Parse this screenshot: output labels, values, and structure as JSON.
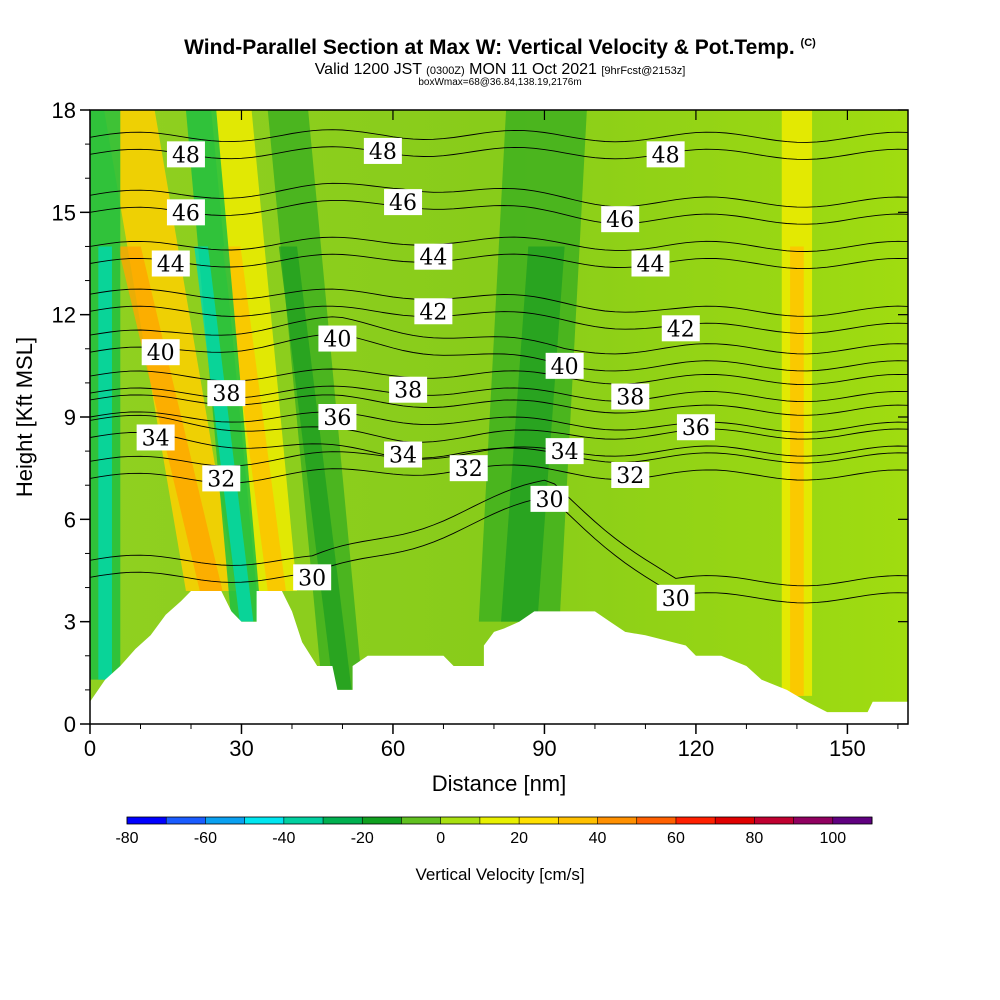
{
  "header": {
    "title": "Wind-Parallel Section at Max W: Vertical Velocity & Pot.Temp.",
    "copyright": "(C)",
    "valid_prefix": "Valid 1200 JST",
    "valid_utc": "(0300Z)",
    "valid_date": "MON 11 Oct 2021",
    "forecast": "[9hrFcst@2153z]",
    "box_info": "boxWmax=68@36.84,138.19,2176m"
  },
  "chart_data": {
    "type": "heatmap",
    "xlabel": "Distance [nm]",
    "ylabel": "Height [Kft MSL]",
    "xlim": [
      0,
      162
    ],
    "ylim": [
      0,
      18
    ],
    "x_ticks": [
      0,
      30,
      60,
      90,
      120,
      150
    ],
    "y_ticks": [
      0,
      3,
      6,
      9,
      12,
      15,
      18
    ],
    "terrain_kft": [
      [
        0,
        0.65
      ],
      [
        3,
        1.3
      ],
      [
        6,
        1.7
      ],
      [
        9,
        2.2
      ],
      [
        12,
        2.6
      ],
      [
        15,
        3.2
      ],
      [
        18,
        3.6
      ],
      [
        20,
        3.9
      ],
      [
        26,
        3.9
      ],
      [
        28,
        3.3
      ],
      [
        30,
        3.0
      ],
      [
        33,
        3.0
      ],
      [
        33,
        3.9
      ],
      [
        38,
        3.9
      ],
      [
        40,
        3.3
      ],
      [
        42,
        2.4
      ],
      [
        45,
        1.7
      ],
      [
        48,
        1.7
      ],
      [
        49,
        1.0
      ],
      [
        52,
        1.0
      ],
      [
        52,
        1.7
      ],
      [
        55,
        2.0
      ],
      [
        70,
        2.0
      ],
      [
        72,
        1.7
      ],
      [
        78,
        1.7
      ],
      [
        78,
        2.3
      ],
      [
        80,
        2.7
      ],
      [
        82,
        2.8
      ],
      [
        85,
        3.0
      ],
      [
        88,
        3.3
      ],
      [
        100,
        3.3
      ],
      [
        103,
        3.0
      ],
      [
        106,
        2.7
      ],
      [
        110,
        2.6
      ],
      [
        118,
        2.3
      ],
      [
        120,
        2.0
      ],
      [
        125,
        2.0
      ],
      [
        130,
        1.7
      ],
      [
        133,
        1.3
      ],
      [
        138,
        1.0
      ],
      [
        142,
        0.65
      ],
      [
        146,
        0.35
      ],
      [
        154,
        0.35
      ],
      [
        155,
        0.65
      ],
      [
        162,
        0.65
      ]
    ],
    "theta_contour_labels": [
      {
        "value": "48",
        "x": 19,
        "y": 16.7
      },
      {
        "value": "48",
        "x": 58,
        "y": 16.8
      },
      {
        "value": "48",
        "x": 114,
        "y": 16.7
      },
      {
        "value": "46",
        "x": 19,
        "y": 15.0
      },
      {
        "value": "46",
        "x": 62,
        "y": 15.3
      },
      {
        "value": "46",
        "x": 105,
        "y": 14.8
      },
      {
        "value": "44",
        "x": 16,
        "y": 13.5
      },
      {
        "value": "44",
        "x": 68,
        "y": 13.7
      },
      {
        "value": "44",
        "x": 111,
        "y": 13.5
      },
      {
        "value": "42",
        "x": 68,
        "y": 12.1
      },
      {
        "value": "42",
        "x": 117,
        "y": 11.6
      },
      {
        "value": "40",
        "x": 14,
        "y": 10.9
      },
      {
        "value": "40",
        "x": 49,
        "y": 11.3
      },
      {
        "value": "40",
        "x": 94,
        "y": 10.5
      },
      {
        "value": "38",
        "x": 27,
        "y": 9.7
      },
      {
        "value": "38",
        "x": 63,
        "y": 9.8
      },
      {
        "value": "38",
        "x": 107,
        "y": 9.6
      },
      {
        "value": "36",
        "x": 49,
        "y": 9.0
      },
      {
        "value": "36",
        "x": 120,
        "y": 8.7
      },
      {
        "value": "34",
        "x": 13,
        "y": 8.4
      },
      {
        "value": "34",
        "x": 62,
        "y": 7.9
      },
      {
        "value": "34",
        "x": 94,
        "y": 8.0
      },
      {
        "value": "32",
        "x": 26,
        "y": 7.2
      },
      {
        "value": "32",
        "x": 75,
        "y": 7.5
      },
      {
        "value": "32",
        "x": 107,
        "y": 7.3
      },
      {
        "value": "30",
        "x": 91,
        "y": 6.6
      },
      {
        "value": "30",
        "x": 44,
        "y": 4.3
      },
      {
        "value": "30",
        "x": 116,
        "y": 3.7
      }
    ],
    "velocity_bands": [
      {
        "x": 24,
        "w": 5,
        "tilt": -0.9,
        "cls": "strong_up"
      },
      {
        "x": 37,
        "w": 4,
        "tilt": -0.5,
        "cls": "up"
      },
      {
        "x": 31,
        "w": 3,
        "tilt": -0.5,
        "cls": "down"
      },
      {
        "x": 3,
        "w": 3,
        "tilt": 0.0,
        "cls": "down"
      },
      {
        "x": 50,
        "w": 4,
        "tilt": -0.6,
        "cls": "down_weak"
      },
      {
        "x": 85,
        "w": 8,
        "tilt": 0.3,
        "cls": "down_weak"
      },
      {
        "x": 140,
        "w": 3,
        "tilt": 0.0,
        "cls": "up"
      }
    ],
    "colorbar": {
      "label": "Vertical Velocity [cm/s]",
      "tick_labels": [
        "-80",
        "-60",
        "-40",
        "-20",
        "0",
        "20",
        "40",
        "60",
        "80",
        "100"
      ],
      "colors": [
        "#0000ff",
        "#1a5cff",
        "#0aa0f0",
        "#00e6f0",
        "#00d0a0",
        "#00b050",
        "#10a020",
        "#60c020",
        "#a8e010",
        "#e8f000",
        "#ffe000",
        "#ffc000",
        "#ff9000",
        "#ff6000",
        "#ff2000",
        "#e00000",
        "#c00030",
        "#900060",
        "#600080"
      ]
    }
  }
}
